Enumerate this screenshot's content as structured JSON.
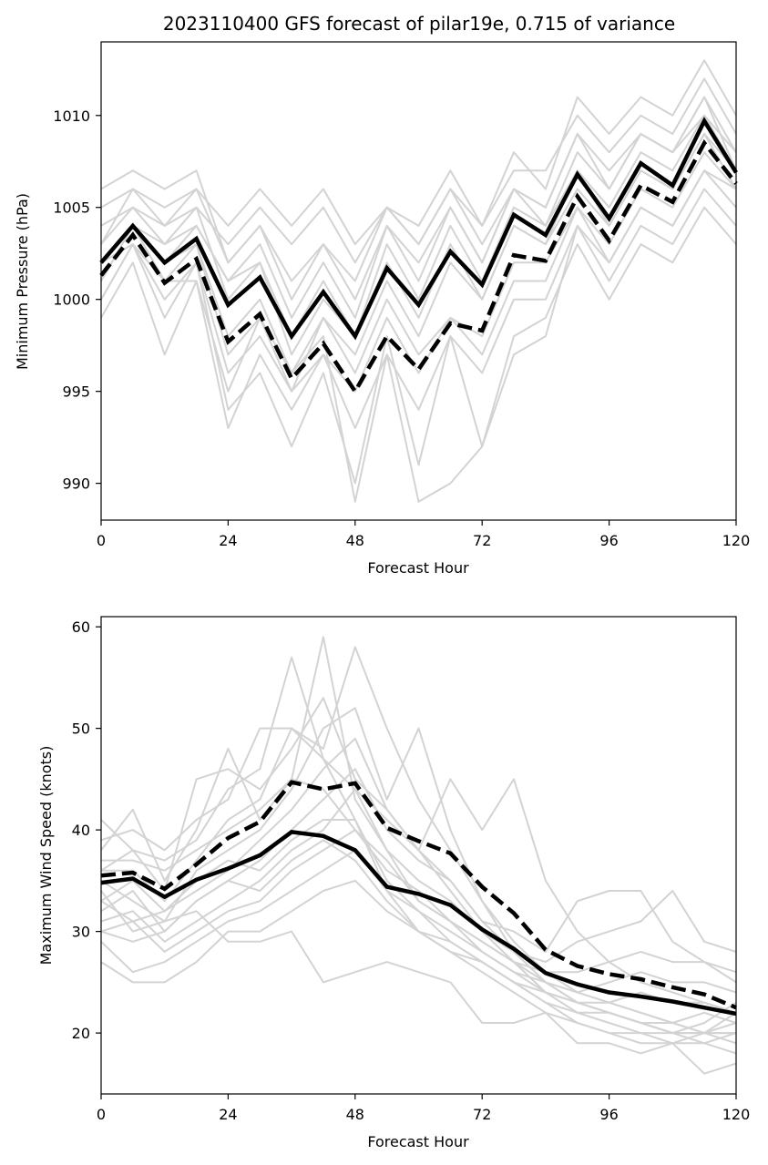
{
  "chart_data": [
    {
      "type": "line",
      "title": "2023110400 GFS forecast of pilar19e, 0.715 of variance",
      "xlabel": "Forecast Hour",
      "ylabel": "Minimum Pressure (hPa)",
      "xlim": [
        0,
        120
      ],
      "ylim": [
        988,
        1014
      ],
      "xticks": [
        0,
        24,
        48,
        72,
        96,
        120
      ],
      "yticks": [
        990,
        995,
        1000,
        1005,
        1010
      ],
      "x": [
        0,
        6,
        12,
        18,
        24,
        30,
        36,
        42,
        48,
        54,
        60,
        66,
        72,
        78,
        84,
        90,
        96,
        102,
        108,
        114,
        120
      ],
      "legend": "none",
      "grid": false,
      "colors": {
        "ensemble": "#d3d3d3",
        "highlight": "#000000"
      },
      "ensemble": [
        [
          1006,
          1007,
          1006,
          1007,
          1002,
          1004,
          1000,
          1003,
          1001,
          1005,
          1004,
          1007,
          1004,
          1008,
          1006,
          1011,
          1009,
          1011,
          1010,
          1013,
          1010
        ],
        [
          1005,
          1006,
          1005,
          1006,
          1004,
          1006,
          1004,
          1006,
          1003,
          1005,
          1003,
          1006,
          1004,
          1007,
          1007,
          1010,
          1008,
          1010,
          1009,
          1012,
          1009
        ],
        [
          1004,
          1005,
          1004,
          1005,
          1003,
          1005,
          1003,
          1005,
          1002,
          1005,
          1003,
          1006,
          1003,
          1006,
          1005,
          1009,
          1007,
          1009,
          1008,
          1011,
          1008
        ],
        [
          1003,
          1005,
          1003,
          1004,
          1001,
          1003,
          999,
          1002,
          999,
          1004,
          1001,
          1005,
          1002,
          1006,
          1004,
          1008,
          1006,
          1009,
          1008,
          1011,
          1007
        ],
        [
          1002,
          1004,
          1002,
          1004,
          1001,
          1002,
          998,
          1001,
          998,
          1003,
          1000,
          1004,
          1001,
          1005,
          1004,
          1007,
          1005,
          1008,
          1007,
          1010,
          1007
        ],
        [
          1001,
          1004,
          1001,
          1003,
          998,
          1000,
          996,
          999,
          997,
          1001,
          998,
          1002,
          1000,
          1004,
          1003,
          1006,
          1004,
          1007,
          1006,
          1009,
          1006
        ],
        [
          1000,
          1003,
          1000,
          1002,
          996,
          998,
          995,
          997,
          995,
          999,
          996,
          999,
          998,
          1002,
          1002,
          1005,
          1003,
          1006,
          1005,
          1008,
          1006
        ],
        [
          999,
          1002,
          997,
          1001,
          993,
          997,
          994,
          997,
          993,
          997,
          994,
          998,
          996,
          1000,
          1000,
          1004,
          1002,
          1005,
          1004,
          1007,
          1005
        ],
        [
          1002,
          1003,
          999,
          1002,
          994,
          996,
          992,
          996,
          990,
          998,
          991,
          998,
          992,
          998,
          999,
          1003,
          1000,
          1003,
          1002,
          1005,
          1003
        ],
        [
          1001,
          1004,
          1002,
          1003,
          997,
          999,
          996,
          998,
          989,
          997,
          989,
          990,
          992,
          997,
          998,
          1004,
          1001,
          1004,
          1003,
          1006,
          1004
        ],
        [
          1000,
          1003,
          1001,
          1001,
          995,
          999,
          995,
          999,
          996,
          1000,
          997,
          999,
          997,
          1001,
          1001,
          1005,
          1002,
          1005,
          1004,
          1007,
          1006
        ],
        [
          1002,
          1004,
          1003,
          1005,
          1000,
          1002,
          997,
          1000,
          998,
          1002,
          999,
          1003,
          1000,
          1004,
          1003,
          1007,
          1004,
          1007,
          1006,
          1009,
          1007
        ],
        [
          1003,
          1006,
          1004,
          1006,
          1002,
          1004,
          1001,
          1003,
          1000,
          1004,
          1002,
          1005,
          1002,
          1006,
          1005,
          1009,
          1006,
          1009,
          1008,
          1010,
          1008
        ]
      ],
      "series": [
        {
          "style": "solid",
          "values": [
            1002,
            1004,
            1002,
            1003.3,
            999.7,
            1001.2,
            998,
            1000.4,
            998,
            1001.7,
            999.7,
            1002.6,
            1000.8,
            1004.6,
            1003.5,
            1006.8,
            1004.4,
            1007.4,
            1006.2,
            1009.7,
            1006.9
          ]
        },
        {
          "style": "dashed",
          "values": [
            1001.3,
            1003.5,
            1000.9,
            1002.2,
            997.7,
            999.2,
            995.7,
            997.6,
            995,
            998,
            996.2,
            998.7,
            998.3,
            1002.4,
            1002.1,
            1005.6,
            1003.2,
            1006.2,
            1005.3,
            1008.5,
            1006.3
          ]
        }
      ]
    },
    {
      "type": "line",
      "xlabel": "Forecast Hour",
      "ylabel": "Maximum Wind Speed (knots)",
      "xlim": [
        0,
        120
      ],
      "ylim": [
        14,
        61
      ],
      "xticks": [
        0,
        24,
        48,
        72,
        96,
        120
      ],
      "yticks": [
        20,
        30,
        40,
        50,
        60
      ],
      "x": [
        0,
        6,
        12,
        18,
        24,
        30,
        36,
        42,
        48,
        54,
        60,
        66,
        72,
        78,
        84,
        90,
        96,
        102,
        108,
        114,
        120
      ],
      "legend": "none",
      "grid": false,
      "colors": {
        "ensemble": "#d3d3d3",
        "highlight": "#000000"
      },
      "ensemble": [
        [
          41,
          38,
          37,
          39,
          44,
          46,
          57,
          47,
          41,
          34,
          30,
          29,
          27,
          25,
          23,
          22,
          22,
          21,
          20,
          20,
          19
        ],
        [
          38,
          42,
          35,
          40,
          48,
          41,
          45,
          59,
          43,
          38,
          33,
          31,
          28,
          26,
          24,
          23,
          22,
          21,
          21,
          20,
          20
        ],
        [
          36,
          36,
          33,
          37,
          41,
          43,
          50,
          48,
          58,
          50,
          43,
          38,
          33,
          28,
          25,
          23,
          22,
          21,
          20,
          19,
          18
        ],
        [
          35,
          33,
          31,
          36,
          38,
          40,
          44,
          50,
          52,
          43,
          50,
          40,
          33,
          29,
          26,
          24,
          23,
          22,
          21,
          20,
          20
        ],
        [
          33,
          35,
          32,
          34,
          36,
          39,
          42,
          46,
          49,
          42,
          38,
          45,
          40,
          45,
          35,
          30,
          27,
          25,
          24,
          23,
          22
        ],
        [
          32,
          34,
          30,
          33,
          35,
          37,
          40,
          43,
          46,
          40,
          37,
          35,
          31,
          30,
          28,
          33,
          34,
          34,
          29,
          27,
          25
        ],
        [
          31,
          32,
          29,
          31,
          33,
          35,
          38,
          40,
          44,
          38,
          35,
          33,
          30,
          28,
          27,
          29,
          30,
          31,
          34,
          29,
          28
        ],
        [
          30,
          31,
          28,
          30,
          32,
          33,
          36,
          38,
          40,
          36,
          34,
          31,
          29,
          27,
          26,
          26,
          27,
          28,
          27,
          27,
          26
        ],
        [
          29,
          26,
          27,
          29,
          31,
          32,
          34,
          36,
          38,
          34,
          32,
          30,
          28,
          26,
          25,
          24,
          25,
          26,
          25,
          25,
          24
        ],
        [
          27,
          25,
          25,
          27,
          30,
          30,
          32,
          34,
          35,
          32,
          30,
          28,
          27,
          25,
          24,
          23,
          23,
          24,
          23,
          23,
          22
        ],
        [
          34,
          30,
          31,
          32,
          29,
          29,
          30,
          25,
          26,
          27,
          26,
          25,
          21,
          21,
          22,
          19,
          19,
          18,
          19,
          16,
          17
        ],
        [
          37,
          37,
          36,
          38,
          40,
          42,
          45,
          44,
          40,
          37,
          33,
          31,
          29,
          27,
          24,
          22,
          21,
          20,
          19,
          19,
          20
        ],
        [
          39,
          40,
          38,
          41,
          43,
          50,
          50,
          47,
          44,
          41,
          38,
          35,
          31,
          28,
          26,
          24,
          23,
          22,
          21,
          22,
          21
        ],
        [
          36,
          38,
          34,
          45,
          46,
          44,
          48,
          53,
          45,
          42,
          38,
          34,
          30,
          27,
          25,
          23,
          22,
          21,
          20,
          20,
          21
        ],
        [
          33,
          31,
          32,
          35,
          37,
          36,
          39,
          41,
          41,
          35,
          32,
          29,
          27,
          25,
          23,
          21,
          20,
          19,
          19,
          20,
          22
        ],
        [
          30,
          29,
          30,
          33,
          35,
          34,
          37,
          39,
          37,
          33,
          30,
          28,
          26,
          24,
          22,
          21,
          20,
          20,
          20,
          21,
          23
        ]
      ],
      "series": [
        {
          "style": "solid",
          "values": [
            34.8,
            35.2,
            33.4,
            35.1,
            36.2,
            37.5,
            39.8,
            39.4,
            38,
            34.4,
            33.7,
            32.6,
            30.2,
            28.3,
            25.9,
            24.8,
            24,
            23.6,
            23.1,
            22.5,
            21.9
          ]
        },
        {
          "style": "dashed",
          "values": [
            35.5,
            35.8,
            34.2,
            36.6,
            39.2,
            40.8,
            44.7,
            44,
            44.6,
            40.2,
            38.9,
            37.7,
            34.4,
            31.8,
            28.2,
            26.6,
            25.8,
            25.3,
            24.5,
            23.8,
            22.5
          ]
        }
      ]
    }
  ]
}
